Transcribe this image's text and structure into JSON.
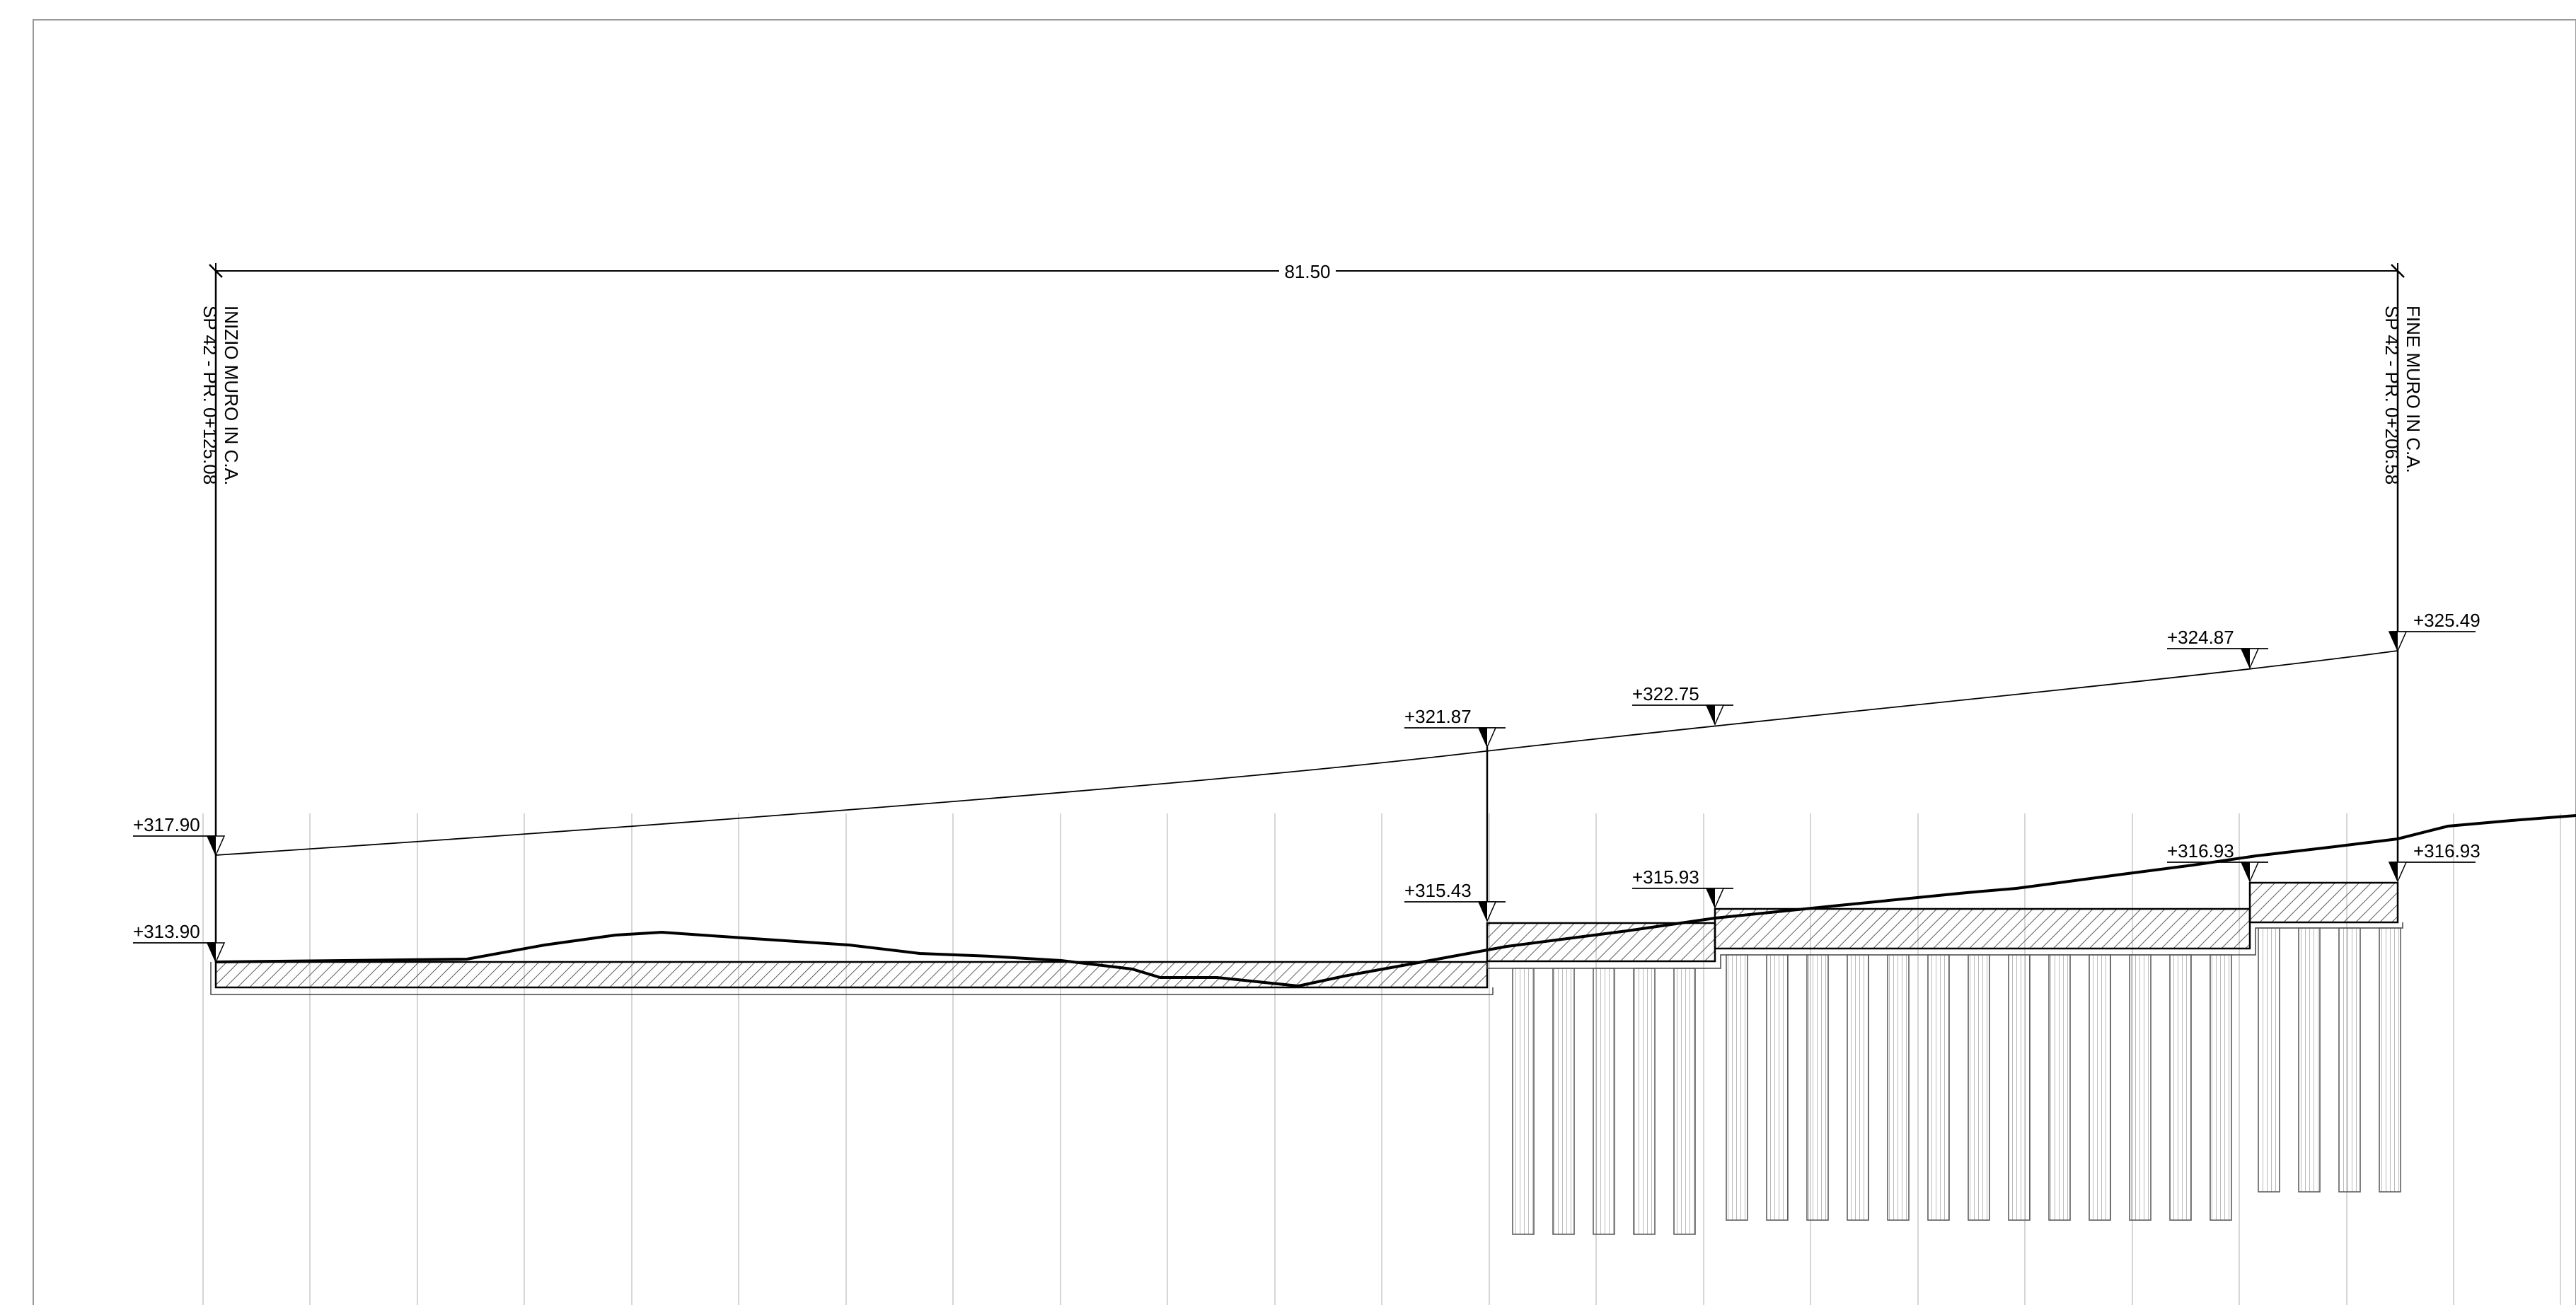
{
  "drawing": {
    "overall_dimension": "81.50",
    "start_wall": {
      "line1": "INIZIO MURO IN C.A.",
      "line2": "SP 42 - PR. 0+125.08"
    },
    "end_wall": {
      "line1": "FINE MURO IN C.A.",
      "line2": "SP 42 - PR. 0+206.58"
    },
    "elevations": {
      "top_start": "+317.90",
      "base_start": "+313.90",
      "top_a": "+321.87",
      "base_a": "+315.43",
      "top_b": "+322.75",
      "base_b": "+315.93",
      "top_c": "+324.87",
      "base_c": "+316.93",
      "top_end": "+325.49",
      "base_end": "+316.93"
    },
    "colors": {
      "line": "#000000",
      "grid": "#c8c8c8",
      "hatch": "#333333"
    }
  }
}
